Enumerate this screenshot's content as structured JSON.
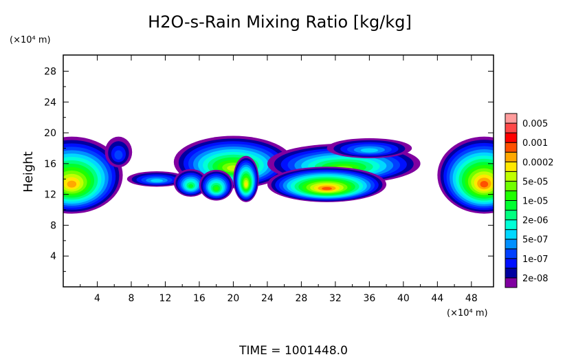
{
  "chart_data": {
    "type": "heatmap",
    "title": "H2O-s-Rain Mixing Ratio [kg/kg]",
    "ylabel": "Height",
    "x_unit": "(×10⁴ m)",
    "y_unit": "(×10⁴ m)",
    "footer": "TIME = 1001448.0",
    "xlim": [
      0,
      50.6
    ],
    "ylim": [
      0,
      30.1
    ],
    "xticks": [
      4,
      8,
      12,
      16,
      20,
      24,
      28,
      32,
      36,
      40,
      44,
      48
    ],
    "yticks": [
      4,
      8,
      12,
      16,
      20,
      24,
      28
    ],
    "colorbar": {
      "colors": [
        "#8000a0",
        "#0000a0",
        "#0010ff",
        "#0040ff",
        "#0090ff",
        "#00d8ff",
        "#00ffd8",
        "#00ff80",
        "#00ff30",
        "#20ff00",
        "#70ff00",
        "#c0ff00",
        "#ffe800",
        "#ffa800",
        "#ff5000",
        "#ff0000",
        "#ff4848",
        "#ff9c9c"
      ],
      "labels": [
        "2e-08",
        "1e-07",
        "5e-07",
        "2e-06",
        "1e-05",
        "5e-05",
        "0.0002",
        "0.001",
        "0.005"
      ]
    },
    "field_blobs": [
      {
        "cx": 1,
        "cy": 14.5,
        "rx": 6,
        "ry": 5,
        "peak": 13
      },
      {
        "cx": 6.5,
        "cy": 17.5,
        "rx": 1.6,
        "ry": 2,
        "peak": 3
      },
      {
        "cx": 11,
        "cy": 14,
        "rx": 3.5,
        "ry": 1,
        "peak": 5
      },
      {
        "cx": 20,
        "cy": 16.2,
        "rx": 7,
        "ry": 3.4,
        "peak": 11
      },
      {
        "cx": 15,
        "cy": 13.5,
        "rx": 2,
        "ry": 1.8,
        "peak": 8
      },
      {
        "cx": 18,
        "cy": 13.2,
        "rx": 2,
        "ry": 2,
        "peak": 9
      },
      {
        "cx": 21.5,
        "cy": 14,
        "rx": 1.5,
        "ry": 3,
        "peak": 12
      },
      {
        "cx": 33,
        "cy": 16,
        "rx": 9,
        "ry": 2.6,
        "peak": 10
      },
      {
        "cx": 36,
        "cy": 18,
        "rx": 5,
        "ry": 1.3,
        "peak": 5
      },
      {
        "cx": 31,
        "cy": 13.3,
        "rx": 7,
        "ry": 2.3,
        "peak": 14
      },
      {
        "cx": 49.5,
        "cy": 14.5,
        "rx": 5.5,
        "ry": 5,
        "peak": 14
      }
    ]
  }
}
